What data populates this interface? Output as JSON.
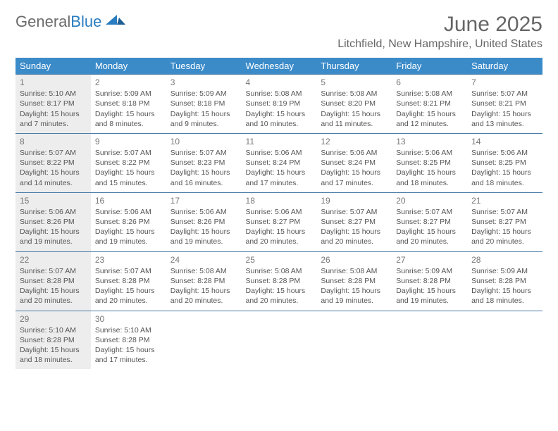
{
  "brand": {
    "word1": "General",
    "word2": "Blue"
  },
  "title": "June 2025",
  "location": "Litchfield, New Hampshire, United States",
  "dayHeaders": [
    "Sunday",
    "Monday",
    "Tuesday",
    "Wednesday",
    "Thursday",
    "Friday",
    "Saturday"
  ],
  "colors": {
    "header_blue": "#3b8bc9",
    "divider": "#4a7ba8",
    "bg_gray": "#ededed",
    "logo_gray": "#6b6b6b",
    "logo_blue": "#2a7dc0",
    "text": "#555555"
  },
  "weeks": [
    [
      {
        "n": 1,
        "shaded": true,
        "sunrise": "5:10 AM",
        "sunset": "8:17 PM",
        "daylight": "15 hours and 7 minutes."
      },
      {
        "n": 2,
        "shaded": false,
        "sunrise": "5:09 AM",
        "sunset": "8:18 PM",
        "daylight": "15 hours and 8 minutes."
      },
      {
        "n": 3,
        "shaded": false,
        "sunrise": "5:09 AM",
        "sunset": "8:18 PM",
        "daylight": "15 hours and 9 minutes."
      },
      {
        "n": 4,
        "shaded": false,
        "sunrise": "5:08 AM",
        "sunset": "8:19 PM",
        "daylight": "15 hours and 10 minutes."
      },
      {
        "n": 5,
        "shaded": false,
        "sunrise": "5:08 AM",
        "sunset": "8:20 PM",
        "daylight": "15 hours and 11 minutes."
      },
      {
        "n": 6,
        "shaded": false,
        "sunrise": "5:08 AM",
        "sunset": "8:21 PM",
        "daylight": "15 hours and 12 minutes."
      },
      {
        "n": 7,
        "shaded": false,
        "sunrise": "5:07 AM",
        "sunset": "8:21 PM",
        "daylight": "15 hours and 13 minutes."
      }
    ],
    [
      {
        "n": 8,
        "shaded": true,
        "sunrise": "5:07 AM",
        "sunset": "8:22 PM",
        "daylight": "15 hours and 14 minutes."
      },
      {
        "n": 9,
        "shaded": false,
        "sunrise": "5:07 AM",
        "sunset": "8:22 PM",
        "daylight": "15 hours and 15 minutes."
      },
      {
        "n": 10,
        "shaded": false,
        "sunrise": "5:07 AM",
        "sunset": "8:23 PM",
        "daylight": "15 hours and 16 minutes."
      },
      {
        "n": 11,
        "shaded": false,
        "sunrise": "5:06 AM",
        "sunset": "8:24 PM",
        "daylight": "15 hours and 17 minutes."
      },
      {
        "n": 12,
        "shaded": false,
        "sunrise": "5:06 AM",
        "sunset": "8:24 PM",
        "daylight": "15 hours and 17 minutes."
      },
      {
        "n": 13,
        "shaded": false,
        "sunrise": "5:06 AM",
        "sunset": "8:25 PM",
        "daylight": "15 hours and 18 minutes."
      },
      {
        "n": 14,
        "shaded": false,
        "sunrise": "5:06 AM",
        "sunset": "8:25 PM",
        "daylight": "15 hours and 18 minutes."
      }
    ],
    [
      {
        "n": 15,
        "shaded": true,
        "sunrise": "5:06 AM",
        "sunset": "8:26 PM",
        "daylight": "15 hours and 19 minutes."
      },
      {
        "n": 16,
        "shaded": false,
        "sunrise": "5:06 AM",
        "sunset": "8:26 PM",
        "daylight": "15 hours and 19 minutes."
      },
      {
        "n": 17,
        "shaded": false,
        "sunrise": "5:06 AM",
        "sunset": "8:26 PM",
        "daylight": "15 hours and 19 minutes."
      },
      {
        "n": 18,
        "shaded": false,
        "sunrise": "5:06 AM",
        "sunset": "8:27 PM",
        "daylight": "15 hours and 20 minutes."
      },
      {
        "n": 19,
        "shaded": false,
        "sunrise": "5:07 AM",
        "sunset": "8:27 PM",
        "daylight": "15 hours and 20 minutes."
      },
      {
        "n": 20,
        "shaded": false,
        "sunrise": "5:07 AM",
        "sunset": "8:27 PM",
        "daylight": "15 hours and 20 minutes."
      },
      {
        "n": 21,
        "shaded": false,
        "sunrise": "5:07 AM",
        "sunset": "8:27 PM",
        "daylight": "15 hours and 20 minutes."
      }
    ],
    [
      {
        "n": 22,
        "shaded": true,
        "sunrise": "5:07 AM",
        "sunset": "8:28 PM",
        "daylight": "15 hours and 20 minutes."
      },
      {
        "n": 23,
        "shaded": false,
        "sunrise": "5:07 AM",
        "sunset": "8:28 PM",
        "daylight": "15 hours and 20 minutes."
      },
      {
        "n": 24,
        "shaded": false,
        "sunrise": "5:08 AM",
        "sunset": "8:28 PM",
        "daylight": "15 hours and 20 minutes."
      },
      {
        "n": 25,
        "shaded": false,
        "sunrise": "5:08 AM",
        "sunset": "8:28 PM",
        "daylight": "15 hours and 20 minutes."
      },
      {
        "n": 26,
        "shaded": false,
        "sunrise": "5:08 AM",
        "sunset": "8:28 PM",
        "daylight": "15 hours and 19 minutes."
      },
      {
        "n": 27,
        "shaded": false,
        "sunrise": "5:09 AM",
        "sunset": "8:28 PM",
        "daylight": "15 hours and 19 minutes."
      },
      {
        "n": 28,
        "shaded": false,
        "sunrise": "5:09 AM",
        "sunset": "8:28 PM",
        "daylight": "15 hours and 18 minutes."
      }
    ],
    [
      {
        "n": 29,
        "shaded": true,
        "sunrise": "5:10 AM",
        "sunset": "8:28 PM",
        "daylight": "15 hours and 18 minutes."
      },
      {
        "n": 30,
        "shaded": false,
        "sunrise": "5:10 AM",
        "sunset": "8:28 PM",
        "daylight": "15 hours and 17 minutes."
      },
      null,
      null,
      null,
      null,
      null
    ]
  ],
  "labels": {
    "sunrise": "Sunrise:",
    "sunset": "Sunset:",
    "daylight": "Daylight:"
  }
}
